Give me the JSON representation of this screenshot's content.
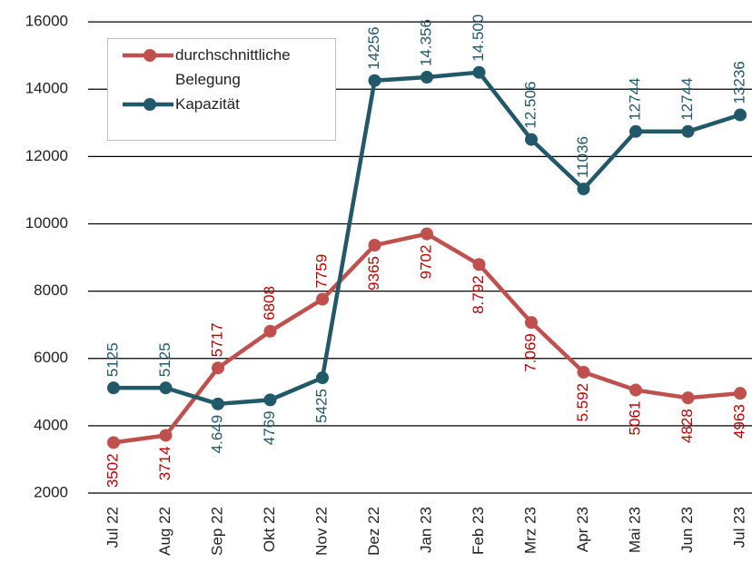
{
  "chart_data": {
    "type": "line",
    "categories": [
      "Jul 22",
      "Aug 22",
      "Sep 22",
      "Okt 22",
      "Nov 22",
      "Dez 22",
      "Jan 23",
      "Feb 23",
      "Mrz 23",
      "Apr 23",
      "Mai 23",
      "Jun 23",
      "Jul 23"
    ],
    "series": [
      {
        "name": "durchschnittliche Belegung",
        "color": "#c0504d",
        "label_color": "#c00000",
        "values": [
          3502,
          3714,
          5717,
          6808,
          7759,
          9365,
          9702,
          8792,
          7069,
          5592,
          5061,
          4828,
          4963
        ],
        "value_labels": [
          "3502",
          "3714",
          "5717",
          "6808",
          "7759",
          "9365",
          "9702",
          "8.792",
          "7.069",
          "5.592",
          "5061",
          "4828",
          "4963"
        ]
      },
      {
        "name": "Kapazität",
        "color": "#215968",
        "label_color": "#215968",
        "values": [
          5125,
          5125,
          4649,
          4769,
          5425,
          14256,
          14356,
          14500,
          12506,
          11036,
          12744,
          12744,
          13236
        ],
        "value_labels": [
          "5125",
          "5125",
          "4.649",
          "4769",
          "5425",
          "14256",
          "14.356",
          "14.500",
          "12.506",
          "11036",
          "12744",
          "12744",
          "13236"
        ]
      }
    ],
    "ylim": [
      2000,
      16650
    ],
    "yticks": [
      2000,
      4000,
      6000,
      8000,
      10000,
      12000,
      14000,
      16000
    ],
    "grid": true
  }
}
